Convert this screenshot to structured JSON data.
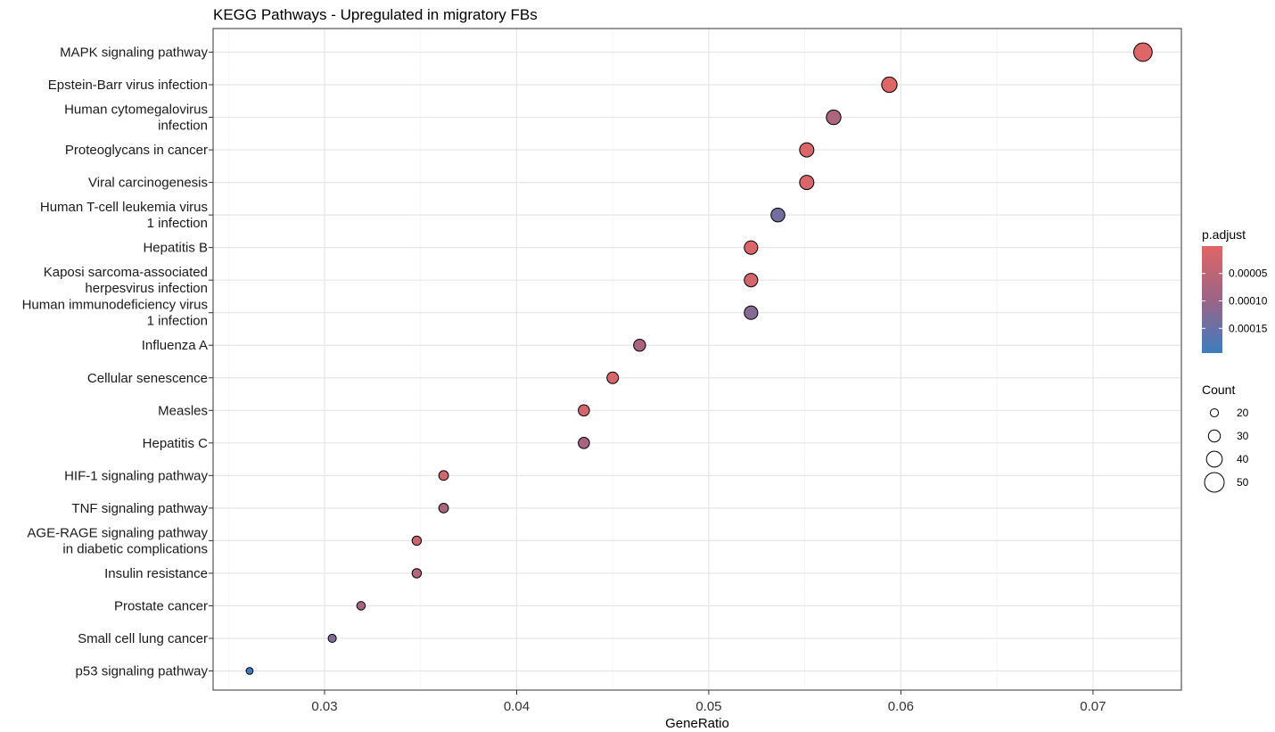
{
  "chart_data": {
    "type": "scatter",
    "title": "KEGG Pathways - Upregulated in migratory FBs",
    "xlabel": "GeneRatio",
    "ylabel": "",
    "xlim": [
      0.0242,
      0.0746
    ],
    "xticks": [
      0.03,
      0.04,
      0.05,
      0.06,
      0.07
    ],
    "xtick_labels": [
      "0.03",
      "0.04",
      "0.05",
      "0.06",
      "0.07"
    ],
    "grid": true,
    "points": [
      {
        "label": [
          "MAPK signaling pathway"
        ],
        "x": 0.0726,
        "count": 47,
        "p_adjust": 4e-06
      },
      {
        "label": [
          "Epstein-Barr virus infection"
        ],
        "x": 0.0594,
        "count": 39,
        "p_adjust": 4e-06
      },
      {
        "label": [
          "Human cytomegalovirus",
          "infection"
        ],
        "x": 0.0565,
        "count": 37,
        "p_adjust": 7.2e-05
      },
      {
        "label": [
          "Proteoglycans in cancer"
        ],
        "x": 0.0551,
        "count": 36,
        "p_adjust": 8e-06
      },
      {
        "label": [
          "Viral carcinogenesis"
        ],
        "x": 0.0551,
        "count": 36,
        "p_adjust": 1.2e-05
      },
      {
        "label": [
          "Human T-cell leukemia virus",
          "1 infection"
        ],
        "x": 0.0536,
        "count": 35,
        "p_adjust": 0.000138
      },
      {
        "label": [
          "Hepatitis B"
        ],
        "x": 0.0522,
        "count": 34,
        "p_adjust": 8e-06
      },
      {
        "label": [
          "Kaposi sarcoma-associated",
          "herpesvirus infection"
        ],
        "x": 0.0522,
        "count": 34,
        "p_adjust": 2e-05
      },
      {
        "label": [
          "Human immunodeficiency virus",
          "1 infection"
        ],
        "x": 0.0522,
        "count": 34,
        "p_adjust": 0.00012
      },
      {
        "label": [
          "Influenza A"
        ],
        "x": 0.0464,
        "count": 30,
        "p_adjust": 7.5e-05
      },
      {
        "label": [
          "Cellular senescence"
        ],
        "x": 0.045,
        "count": 29,
        "p_adjust": 1.5e-05
      },
      {
        "label": [
          "Measles"
        ],
        "x": 0.0435,
        "count": 28,
        "p_adjust": 2e-05
      },
      {
        "label": [
          "Hepatitis C"
        ],
        "x": 0.0435,
        "count": 28,
        "p_adjust": 8e-05
      },
      {
        "label": [
          "HIF-1 signaling pathway"
        ],
        "x": 0.0362,
        "count": 24,
        "p_adjust": 2e-05
      },
      {
        "label": [
          "TNF signaling pathway"
        ],
        "x": 0.0362,
        "count": 24,
        "p_adjust": 7.8e-05
      },
      {
        "label": [
          "AGE-RAGE signaling pathway",
          "in diabetic complications"
        ],
        "x": 0.0348,
        "count": 23,
        "p_adjust": 2.5e-05
      },
      {
        "label": [
          "Insulin resistance"
        ],
        "x": 0.0348,
        "count": 23,
        "p_adjust": 6e-05
      },
      {
        "label": [
          "Prostate cancer"
        ],
        "x": 0.0319,
        "count": 21,
        "p_adjust": 8.5e-05
      },
      {
        "label": [
          "Small cell lung cancer"
        ],
        "x": 0.0304,
        "count": 20,
        "p_adjust": 0.000125
      },
      {
        "label": [
          "p53 signaling pathway"
        ],
        "x": 0.0261,
        "count": 17,
        "p_adjust": 0.000195
      }
    ],
    "color_legend": {
      "title": "p.adjust",
      "range": [
        1e-07,
        0.000195
      ],
      "ticks": [
        5e-05,
        0.0001,
        0.00015
      ],
      "tick_labels": [
        "0.00005",
        "0.00010",
        "0.00015"
      ],
      "low_color": "#e06666",
      "high_color": "#3d7dbf",
      "placement": "right"
    },
    "size_legend": {
      "title": "Count",
      "values": [
        20,
        30,
        40,
        50
      ],
      "tick_labels": [
        "20",
        "30",
        "40",
        "50"
      ],
      "placement": "right"
    }
  }
}
